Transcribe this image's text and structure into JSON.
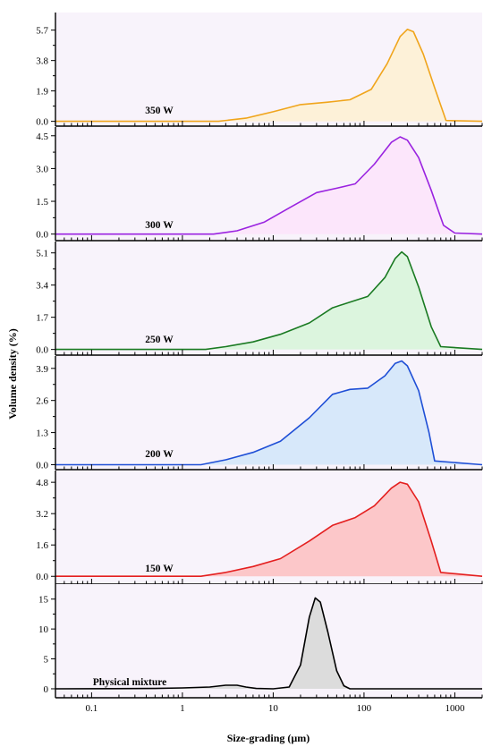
{
  "chart_data": {
    "type": "area",
    "xlabel": "Size-grading (µm)",
    "ylabel": "Volume density (%)",
    "x_scale": "log",
    "xlim": [
      0.04,
      2000
    ],
    "x_ticks": [
      {
        "value": 0.1,
        "label": "0.1"
      },
      {
        "value": 1,
        "label": "1"
      },
      {
        "value": 10,
        "label": "10"
      },
      {
        "value": 100,
        "label": "100"
      },
      {
        "value": 1000,
        "label": "1000"
      }
    ],
    "grid": false,
    "background": "#f8f3fb",
    "panels": [
      {
        "name": "350 W",
        "color": "#f0a51c",
        "fill": "#fdf1d8",
        "ylim": [
          -0.3,
          6.8
        ],
        "yticks": [
          "0.0",
          "1.9",
          "3.8",
          "5.7"
        ],
        "points": [
          [
            0.04,
            0
          ],
          [
            2.5,
            0
          ],
          [
            5,
            0.2
          ],
          [
            10,
            0.6
          ],
          [
            20,
            1.05
          ],
          [
            40,
            1.2
          ],
          [
            70,
            1.35
          ],
          [
            120,
            2.0
          ],
          [
            180,
            3.6
          ],
          [
            250,
            5.3
          ],
          [
            300,
            5.75
          ],
          [
            350,
            5.6
          ],
          [
            450,
            4.2
          ],
          [
            600,
            2.1
          ],
          [
            800,
            0.05
          ],
          [
            2000,
            0
          ]
        ]
      },
      {
        "name": "300 W",
        "color": "#9a23e0",
        "fill": "#fce6fb",
        "ylim": [
          -0.3,
          4.9
        ],
        "yticks": [
          "0.0",
          "1.5",
          "3.0",
          "4.5"
        ],
        "points": [
          [
            0.04,
            0
          ],
          [
            2.2,
            0
          ],
          [
            4,
            0.15
          ],
          [
            8,
            0.55
          ],
          [
            15,
            1.2
          ],
          [
            30,
            1.9
          ],
          [
            50,
            2.1
          ],
          [
            80,
            2.3
          ],
          [
            130,
            3.2
          ],
          [
            200,
            4.2
          ],
          [
            250,
            4.45
          ],
          [
            300,
            4.3
          ],
          [
            400,
            3.5
          ],
          [
            550,
            2.0
          ],
          [
            750,
            0.4
          ],
          [
            1000,
            0.05
          ],
          [
            2000,
            0
          ]
        ]
      },
      {
        "name": "250 W",
        "color": "#1a7a22",
        "fill": "#dcf5de",
        "ylim": [
          -0.3,
          5.7
        ],
        "yticks": [
          "0.0",
          "1.7",
          "3.4",
          "5.1"
        ],
        "points": [
          [
            0.04,
            0
          ],
          [
            1.8,
            0
          ],
          [
            3,
            0.15
          ],
          [
            6,
            0.4
          ],
          [
            12,
            0.8
          ],
          [
            25,
            1.4
          ],
          [
            45,
            2.2
          ],
          [
            70,
            2.5
          ],
          [
            110,
            2.8
          ],
          [
            170,
            3.8
          ],
          [
            220,
            4.8
          ],
          [
            260,
            5.15
          ],
          [
            300,
            4.9
          ],
          [
            400,
            3.3
          ],
          [
            550,
            1.2
          ],
          [
            700,
            0.15
          ],
          [
            2000,
            0
          ]
        ]
      },
      {
        "name": "200 W",
        "color": "#1f4fd6",
        "fill": "#d7e8fa",
        "ylim": [
          -0.2,
          4.4
        ],
        "yticks": [
          "0.0",
          "1.3",
          "2.6",
          "3.9"
        ],
        "points": [
          [
            0.04,
            0
          ],
          [
            1.6,
            0
          ],
          [
            3,
            0.2
          ],
          [
            6,
            0.5
          ],
          [
            12,
            0.95
          ],
          [
            25,
            1.9
          ],
          [
            45,
            2.85
          ],
          [
            70,
            3.05
          ],
          [
            110,
            3.1
          ],
          [
            170,
            3.6
          ],
          [
            220,
            4.1
          ],
          [
            260,
            4.2
          ],
          [
            300,
            4.0
          ],
          [
            400,
            3.0
          ],
          [
            520,
            1.3
          ],
          [
            600,
            0.15
          ],
          [
            2000,
            0
          ]
        ]
      },
      {
        "name": "150 W",
        "color": "#e41f1f",
        "fill": "#fcc7c9",
        "ylim": [
          -0.4,
          5.4
        ],
        "yticks": [
          "0.0",
          "1.6",
          "3.2",
          "4.8"
        ],
        "points": [
          [
            0.04,
            0
          ],
          [
            1.6,
            0
          ],
          [
            3,
            0.2
          ],
          [
            6,
            0.5
          ],
          [
            12,
            0.9
          ],
          [
            25,
            1.8
          ],
          [
            45,
            2.6
          ],
          [
            80,
            3.0
          ],
          [
            130,
            3.6
          ],
          [
            200,
            4.5
          ],
          [
            250,
            4.8
          ],
          [
            300,
            4.7
          ],
          [
            400,
            3.8
          ],
          [
            550,
            1.8
          ],
          [
            700,
            0.2
          ],
          [
            2000,
            0
          ]
        ]
      },
      {
        "name": "Physical mixture",
        "color": "#000000",
        "fill": "#dcdcdc",
        "ylim": [
          -1.5,
          17.5
        ],
        "yticks": [
          "0",
          "5",
          "10",
          "15"
        ],
        "points": [
          [
            0.04,
            0
          ],
          [
            0.5,
            0.05
          ],
          [
            1,
            0.15
          ],
          [
            2,
            0.3
          ],
          [
            3,
            0.6
          ],
          [
            4,
            0.6
          ],
          [
            5,
            0.3
          ],
          [
            6.5,
            0.05
          ],
          [
            10,
            0
          ],
          [
            15,
            0.3
          ],
          [
            20,
            4.0
          ],
          [
            25,
            12.0
          ],
          [
            29,
            15.2
          ],
          [
            33,
            14.5
          ],
          [
            40,
            9.5
          ],
          [
            50,
            3.0
          ],
          [
            60,
            0.5
          ],
          [
            70,
            0
          ],
          [
            2000,
            0
          ]
        ]
      }
    ]
  }
}
